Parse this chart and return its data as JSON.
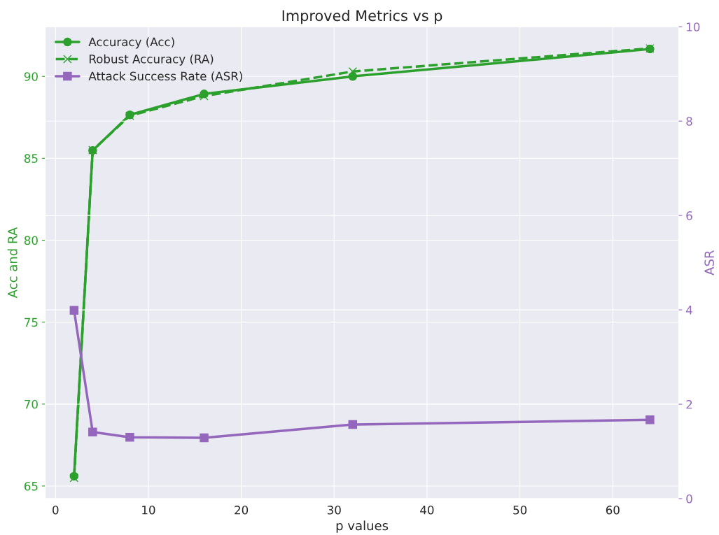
{
  "chart_data": {
    "type": "line",
    "title": "Improved Metrics vs p",
    "xlabel": "p values",
    "ylabel": "Acc and RA",
    "y2label": "ASR",
    "x": [
      2,
      4,
      8,
      16,
      32,
      64
    ],
    "series": [
      {
        "name": "Accuracy (Acc)",
        "color": "#2ca02c",
        "values": [
          65.6,
          85.48,
          87.65,
          88.93,
          90.0,
          91.67
        ],
        "marker": "circle",
        "line_style": "solid"
      },
      {
        "name": "Robust Accuracy (RA)",
        "color": "#2ca02c",
        "values": [
          65.5,
          85.5,
          87.6,
          88.8,
          90.3,
          91.71
        ],
        "marker": "cross",
        "line_style": "dashed"
      },
      {
        "name": "Attack Success Rate (ASR)",
        "color": "#9467bd",
        "values": [
          3.99,
          1.41,
          1.3,
          1.29,
          1.57,
          1.67
        ],
        "marker": "square",
        "line_style": "solid",
        "axis": "y2"
      }
    ],
    "xlim": [
      -1.1,
      67.1
    ],
    "xticks": [
      0,
      10,
      20,
      30,
      40,
      50,
      60
    ],
    "ylim": [
      64.23,
      93.03
    ],
    "yticks": [
      65,
      70,
      75,
      80,
      85,
      90
    ],
    "y2lim": [
      0,
      10
    ],
    "y2ticks": [
      0,
      2,
      4,
      6,
      8,
      10
    ],
    "grid": true,
    "legend": "top left"
  }
}
